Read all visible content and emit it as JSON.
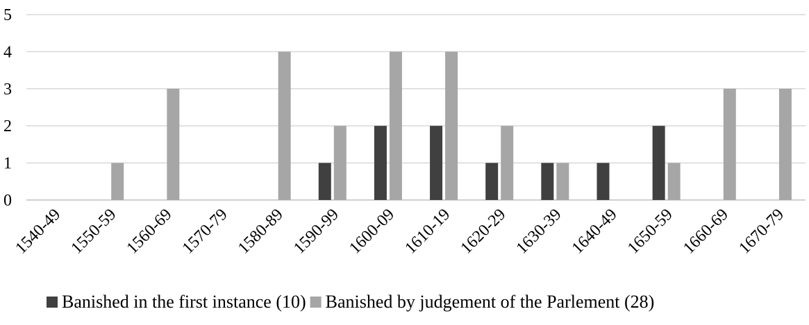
{
  "chart_data": {
    "type": "bar",
    "title": "",
    "xlabel": "",
    "ylabel": "",
    "categories": [
      "1540-49",
      "1550-59",
      "1560-69",
      "1570-79",
      "1580-89",
      "1590-99",
      "1600-09",
      "1610-19",
      "1620-29",
      "1630-39",
      "1640-49",
      "1650-59",
      "1660-69",
      "1670-79"
    ],
    "series": [
      {
        "name": "Banished in the first instance (10)",
        "color": "#404040",
        "values": [
          0,
          0,
          0,
          0,
          0,
          1,
          2,
          2,
          1,
          1,
          1,
          2,
          0,
          0
        ]
      },
      {
        "name": "Banished by judgement of the Parlement (28)",
        "color": "#a6a6a6",
        "values": [
          0,
          1,
          3,
          0,
          4,
          2,
          4,
          4,
          2,
          1,
          0,
          1,
          3,
          3
        ]
      }
    ],
    "ylim": [
      0,
      5
    ],
    "yticks": [
      0,
      1,
      2,
      3,
      4,
      5
    ],
    "grid": true,
    "legend_position": "bottom"
  }
}
